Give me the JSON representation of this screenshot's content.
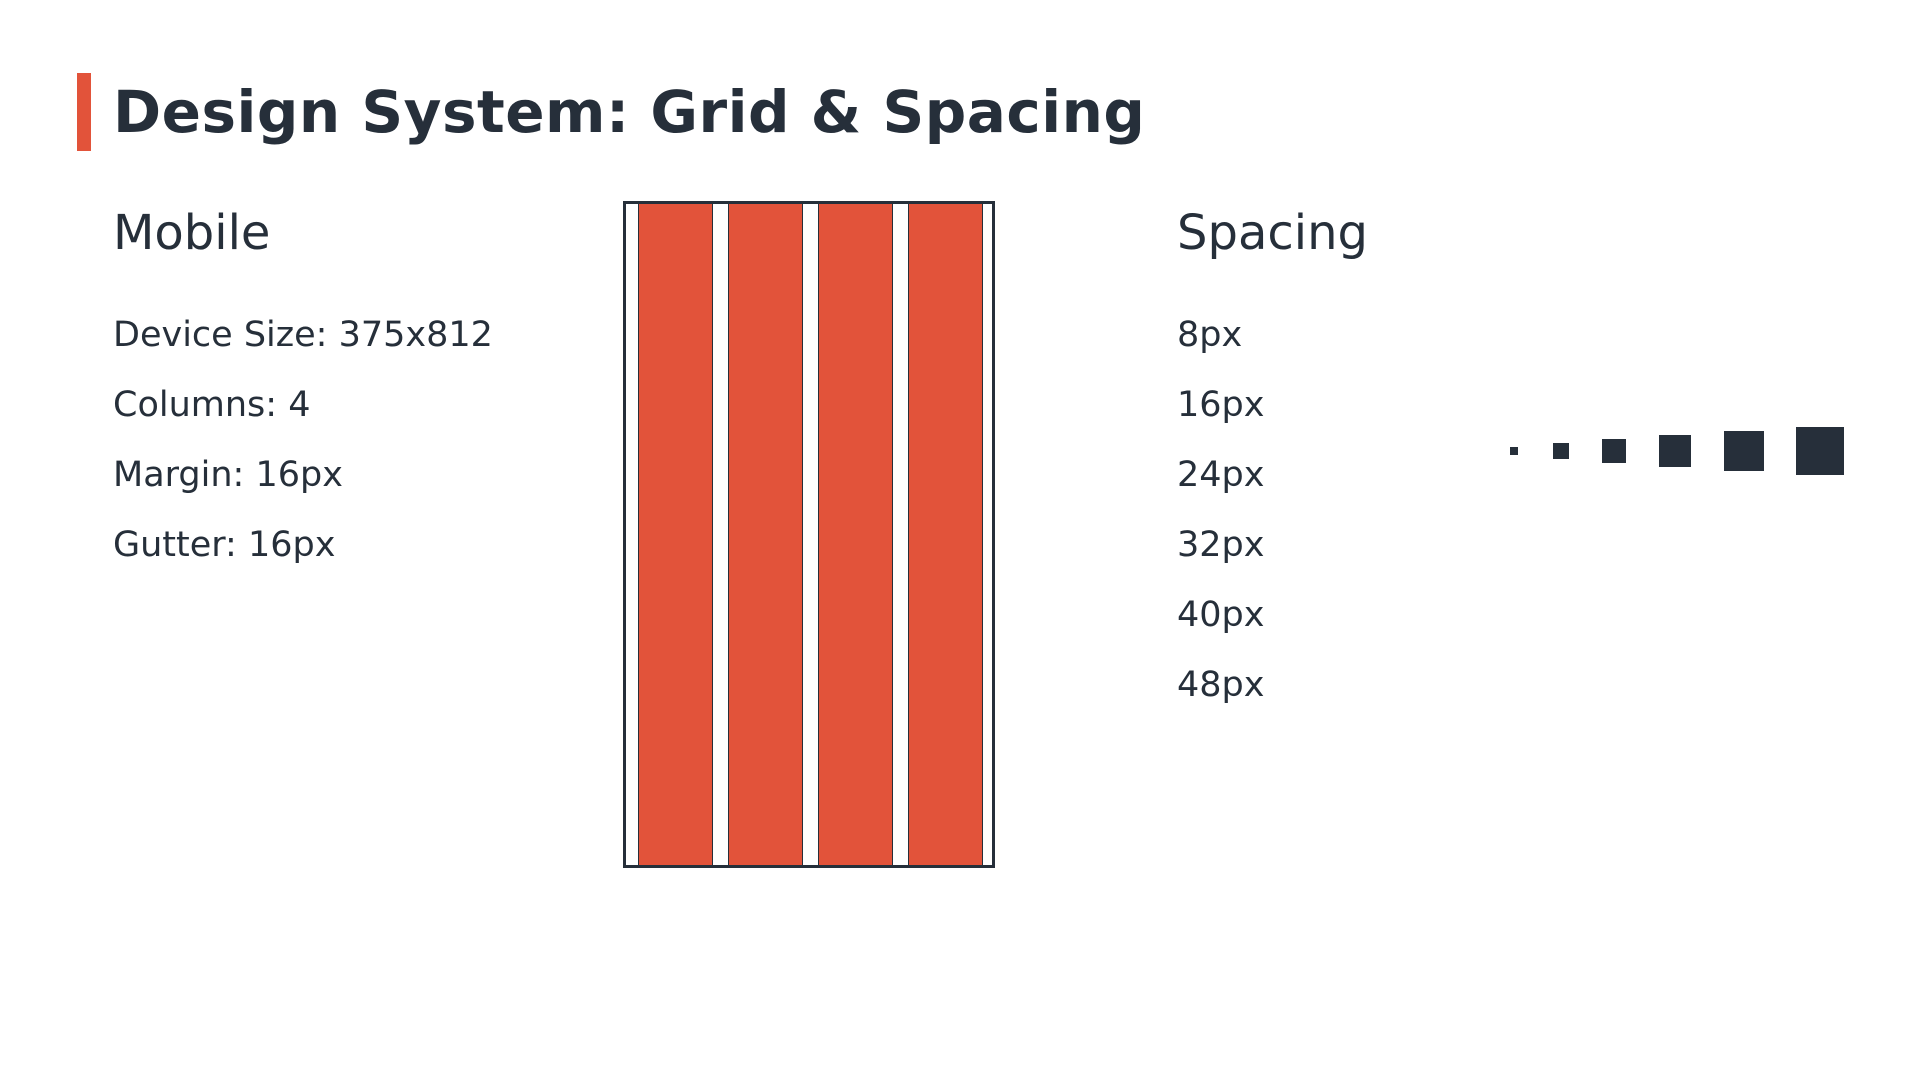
{
  "slide": {
    "title": "Design System: Grid & Spacing",
    "accent_color": "#e2533a",
    "text_color": "#262f3a"
  },
  "mobile": {
    "heading": "Mobile",
    "specs": [
      "Device Size: 375x812",
      "Columns: 4",
      "Margin: 16px",
      "Gutter: 16px"
    ],
    "grid": {
      "columns": 4,
      "column_color": "#e2533a"
    }
  },
  "spacing": {
    "heading": "Spacing",
    "values": [
      "8px",
      "16px",
      "24px",
      "32px",
      "40px",
      "48px"
    ],
    "swatch_color": "#262f3a"
  }
}
